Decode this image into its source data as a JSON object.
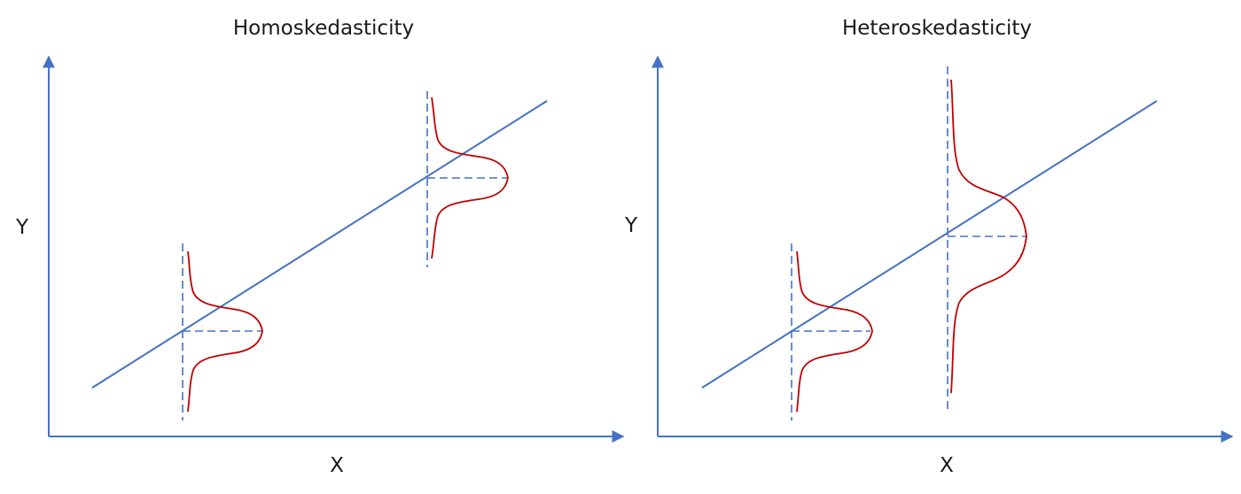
{
  "colors": {
    "axis": "#4472C4",
    "regression_line": "#4472C4",
    "dashed_guides": "#4472C4",
    "density_curve": "#C00000",
    "text": "#1a1a1a"
  },
  "panels": [
    {
      "title": "Homoskedasticity",
      "x_label": "X",
      "y_label": "Y"
    },
    {
      "title": "Heteroskedasticity",
      "x_label": "X",
      "y_label": "Y"
    }
  ]
}
